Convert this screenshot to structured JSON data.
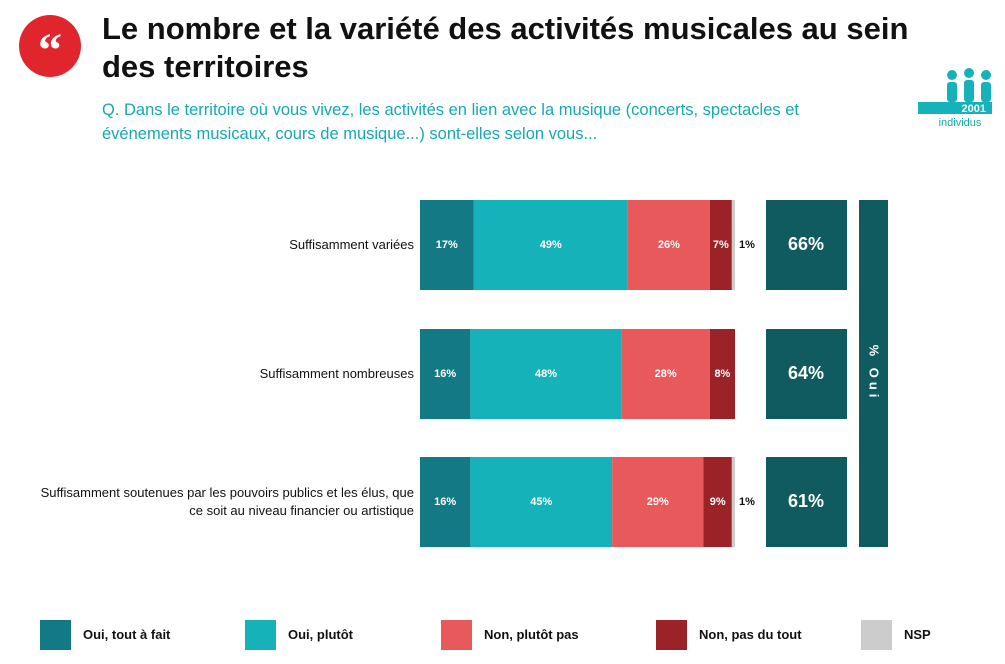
{
  "title": "Le nombre et la variété des activités musicales au sein des territoires",
  "subtitle": "Q. Dans le territoire où vous vivez, les activités en lien avec la musique (concerts, spectacles et événements musicaux, cours de musique...) sont-elles selon vous...",
  "sample": {
    "count": "2001",
    "unit": "individus"
  },
  "chart_data": {
    "type": "stacked-barh",
    "categories": [
      "Suffisamment variées",
      "Suffisamment nombreuses",
      "Suffisamment soutenues par les pouvoirs publics et les élus, que ce soit au niveau financier ou artistique"
    ],
    "xlim": [
      0,
      100
    ],
    "series": [
      {
        "name": "Oui, tout à fait",
        "color": "#137a85",
        "values": [
          17,
          16,
          16
        ],
        "value_labels": [
          "17%",
          "16%",
          "16%"
        ]
      },
      {
        "name": "Oui, plutôt",
        "color": "#15b2ba",
        "values": [
          49,
          48,
          45
        ],
        "value_labels": [
          "49%",
          "48%",
          "45%"
        ]
      },
      {
        "name": "Non, plutôt pas",
        "color": "#e8595b",
        "values": [
          26,
          28,
          29
        ],
        "value_labels": [
          "26%",
          "28%",
          "29%"
        ]
      },
      {
        "name": "Non, pas du tout",
        "color": "#9b2227",
        "values": [
          7,
          8,
          9
        ],
        "value_labels": [
          "7%",
          "8%",
          "9%"
        ]
      },
      {
        "name": "NSP",
        "color": "#cccccc",
        "values": [
          1,
          0,
          1
        ],
        "value_labels": [
          "1%",
          null,
          "1%"
        ]
      }
    ],
    "totals": {
      "name": "% Oui",
      "color": "#0f5b5f",
      "values": [
        66,
        64,
        61
      ],
      "value_labels": [
        "66%",
        "64%",
        "61%"
      ]
    }
  }
}
